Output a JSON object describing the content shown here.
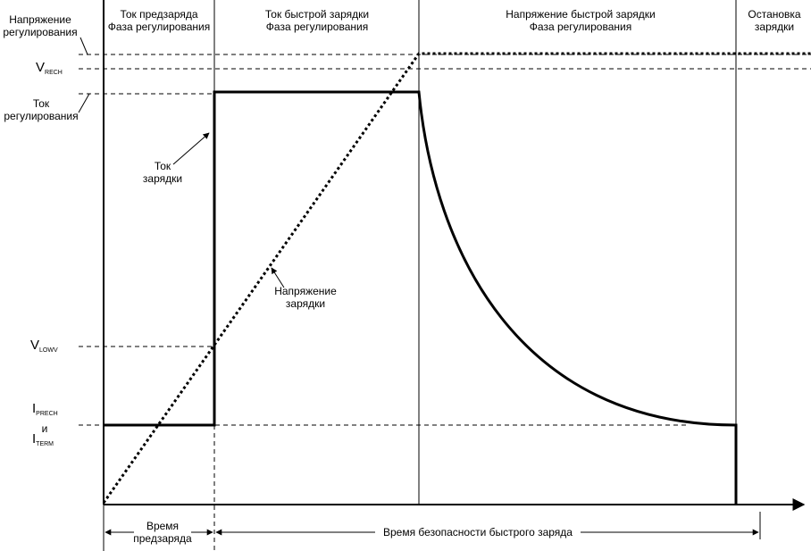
{
  "phases": {
    "precharge": [
      "Ток предзаряда",
      "Фаза регулирования"
    ],
    "fast_current": [
      "Ток быстрой зарядки",
      "Фаза регулирования"
    ],
    "fast_voltage": [
      "Напряжение быстрой зарядки",
      "Фаза регулирования"
    ],
    "stop": [
      "Остановка",
      "зарядки"
    ]
  },
  "left_labels": {
    "voltage_reg": [
      "Напряжение",
      "регулирования"
    ],
    "vrech_main": "V",
    "vrech_sub": "RECH",
    "current_reg": [
      "Ток",
      "регулирования"
    ],
    "vlowv_main": "V",
    "vlowv_sub": "LOWV",
    "iprech_main": "I",
    "iprech_sub": "PRECH",
    "and": "и",
    "iterm_main": "I",
    "iterm_sub": "TERM"
  },
  "annotations": {
    "charge_current": [
      "Ток",
      "зарядки"
    ],
    "charge_voltage": [
      "Напряжение",
      "зарядки"
    ]
  },
  "time_labels": {
    "precharge_time": [
      "Время",
      "предзаряда"
    ],
    "fast_safety_time": "Время безопасности быстрого заряда"
  },
  "colors": {
    "ink": "#000000",
    "background": "#ffffff"
  }
}
